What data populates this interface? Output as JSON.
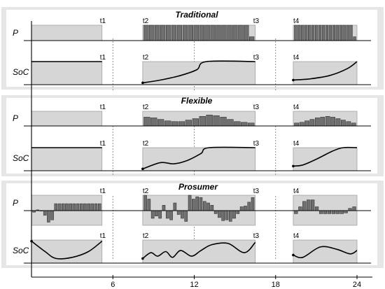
{
  "panels": [
    {
      "title": "Traditional",
      "p_label": "P",
      "soc_label": "SoC",
      "windows": [
        {
          "start": 0,
          "end": 5.2,
          "start_label": "",
          "end_label": "t1",
          "connected": false,
          "p_bars": [],
          "soc": [
            [
              0,
              1
            ],
            [
              5.2,
              1
            ]
          ]
        },
        {
          "start": 8.2,
          "end": 16.5,
          "start_label": "t2",
          "end_label": "t3",
          "connected": true,
          "p_bars": [
            1,
            1,
            1,
            1,
            1,
            1,
            1,
            1,
            1,
            1,
            1,
            1,
            1,
            1,
            1,
            1,
            1,
            1,
            1,
            0.25
          ],
          "soc": [
            [
              8.2,
              0.08
            ],
            [
              9.5,
              0.2
            ],
            [
              11,
              0.4
            ],
            [
              12.2,
              0.65
            ],
            [
              12.9,
              1
            ],
            [
              16.5,
              1
            ]
          ]
        },
        {
          "start": 19.3,
          "end": 24,
          "start_label": "t4",
          "end_label": "",
          "connected": true,
          "p_bars": [
            1,
            1,
            1,
            1,
            1,
            1,
            1,
            1,
            1,
            1,
            1,
            1,
            1,
            1,
            1,
            1,
            1,
            0.25
          ],
          "soc": [
            [
              19.3,
              0.2
            ],
            [
              20.5,
              0.25
            ],
            [
              22,
              0.4
            ],
            [
              23.3,
              0.7
            ],
            [
              24,
              1
            ]
          ]
        }
      ]
    },
    {
      "title": "Flexible",
      "p_label": "P",
      "soc_label": "SoC",
      "windows": [
        {
          "start": 0,
          "end": 5.2,
          "start_label": "",
          "end_label": "t1",
          "connected": false,
          "p_bars": [],
          "soc": [
            [
              0,
              1
            ],
            [
              5.2,
              1
            ]
          ]
        },
        {
          "start": 8.2,
          "end": 16.5,
          "start_label": "t2",
          "end_label": "t3",
          "connected": true,
          "p_bars": [
            0.6,
            0.55,
            0.45,
            0.35,
            0.3,
            0.3,
            0.4,
            0.5,
            0.65,
            0.75,
            0.7,
            0.6,
            0.45,
            0.3,
            0.25,
            0.2
          ],
          "soc": [
            [
              8.2,
              0.08
            ],
            [
              9.5,
              0.35
            ],
            [
              10.5,
              0.3
            ],
            [
              11.5,
              0.45
            ],
            [
              12.5,
              0.75
            ],
            [
              13.1,
              1
            ],
            [
              16.5,
              1
            ]
          ]
        },
        {
          "start": 19.3,
          "end": 24,
          "start_label": "t4",
          "end_label": "",
          "connected": true,
          "p_bars": [
            0.2,
            0.25,
            0.35,
            0.45,
            0.55,
            0.6,
            0.65,
            0.6,
            0.5,
            0.4,
            0.3,
            0.2
          ],
          "soc": [
            [
              19.3,
              0.2
            ],
            [
              20,
              0.25
            ],
            [
              21,
              0.5
            ],
            [
              22.2,
              0.85
            ],
            [
              23,
              1
            ],
            [
              24,
              1
            ]
          ]
        }
      ]
    },
    {
      "title": "Prosumer",
      "p_label": "P",
      "soc_label": "SoC",
      "windows": [
        {
          "start": 0,
          "end": 5.2,
          "start_label": "",
          "end_label": "t1",
          "connected": true,
          "p_bars": [
            -0.1,
            0.05,
            0,
            -0.3,
            -0.75,
            -0.6,
            0.45,
            0.45,
            0.45,
            0.45,
            0.45,
            0.45,
            0.45,
            0.45,
            0.45,
            0.45,
            0.45,
            0.45,
            0.45
          ],
          "soc": [
            [
              0,
              0.95
            ],
            [
              1,
              0.5
            ],
            [
              1.8,
              0.2
            ],
            [
              3,
              0.25
            ],
            [
              4.2,
              0.5
            ],
            [
              5.2,
              0.95
            ]
          ]
        },
        {
          "start": 8.2,
          "end": 16.5,
          "start_label": "t2",
          "end_label": "t3",
          "connected": true,
          "p_bars": [
            1.0,
            0.75,
            -0.5,
            -0.35,
            -0.5,
            0.35,
            -0.5,
            -0.6,
            0.5,
            -0.25,
            -0.5,
            -0.7,
            1.0,
            0.75,
            0.9,
            0.85,
            0.6,
            0.5,
            0.35,
            -0.2,
            -0.45,
            -0.65,
            -0.6,
            -0.7,
            -0.5,
            -0.2,
            0.25,
            0.3,
            0.55,
            0.85
          ],
          "soc": [
            [
              8.2,
              0.2
            ],
            [
              8.8,
              0.45
            ],
            [
              9.3,
              0.3
            ],
            [
              9.9,
              0.5
            ],
            [
              10.4,
              0.25
            ],
            [
              11,
              0.55
            ],
            [
              11.8,
              0.3
            ],
            [
              12.5,
              0.55
            ],
            [
              13.3,
              0.8
            ],
            [
              14.5,
              0.85
            ],
            [
              15.7,
              0.45
            ],
            [
              16.5,
              0.9
            ]
          ]
        },
        {
          "start": 19.3,
          "end": 24,
          "start_label": "t4",
          "end_label": "",
          "connected": true,
          "p_bars": [
            -0.2,
            0.25,
            0.6,
            0.7,
            0.7,
            0.25,
            -0.2,
            -0.2,
            -0.2,
            -0.2,
            -0.2,
            -0.2,
            -0.15,
            0.15,
            0.25
          ],
          "soc": [
            [
              19.3,
              0.35
            ],
            [
              20,
              0.25
            ],
            [
              21.3,
              0.7
            ],
            [
              22.5,
              0.6
            ],
            [
              23.5,
              0.4
            ],
            [
              24,
              0.55
            ]
          ]
        }
      ]
    }
  ],
  "x_axis": {
    "ticks": [
      6,
      12,
      18,
      24
    ],
    "max": 24
  },
  "colors": {
    "box_fill": "#d6d6d6",
    "bar_fill": "#6f6f6f",
    "panel_bg": "#e6e6e6",
    "line": "#000000"
  }
}
